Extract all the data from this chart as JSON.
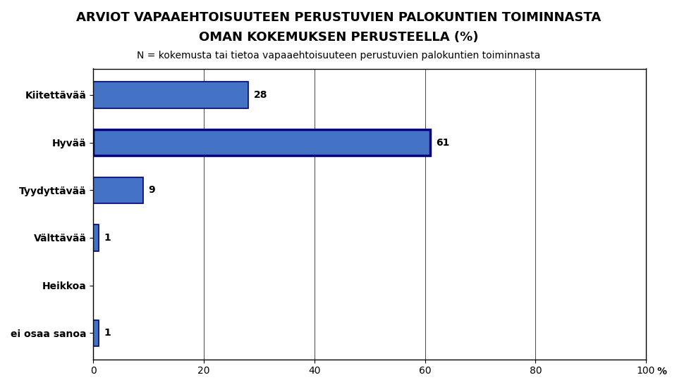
{
  "title_line1": "ARVIOT VAPAAEHTOISUUTEEN PERUSTUVIEN PALOKUNTIEN TOIMINNASTA",
  "title_line2": "OMAN KOKEMUKSEN PERUSTEELLA (%)",
  "subtitle": "N = kokemusta tai tietoa vapaaehtoisuuteen perustuvien palokuntien toiminnasta",
  "categories": [
    "Kiitettävää",
    "Hyvää",
    "Tyydyttävää",
    "Välttävää",
    "Heikkoa",
    "ei osaa sanoa"
  ],
  "values": [
    28,
    61,
    9,
    1,
    0,
    1
  ],
  "bar_color": "#4472C4",
  "bar_edge_color": "#000080",
  "xlim": [
    0,
    100
  ],
  "xticks": [
    0,
    20,
    40,
    60,
    80,
    100
  ],
  "xlabel_percent": "%",
  "value_labels": [
    "28",
    "61",
    "9",
    "1",
    "",
    "1"
  ],
  "background_color": "#ffffff",
  "chart_area_color": "#ffffff",
  "title_fontsize": 13,
  "subtitle_fontsize": 10,
  "label_fontsize": 10,
  "tick_fontsize": 10
}
